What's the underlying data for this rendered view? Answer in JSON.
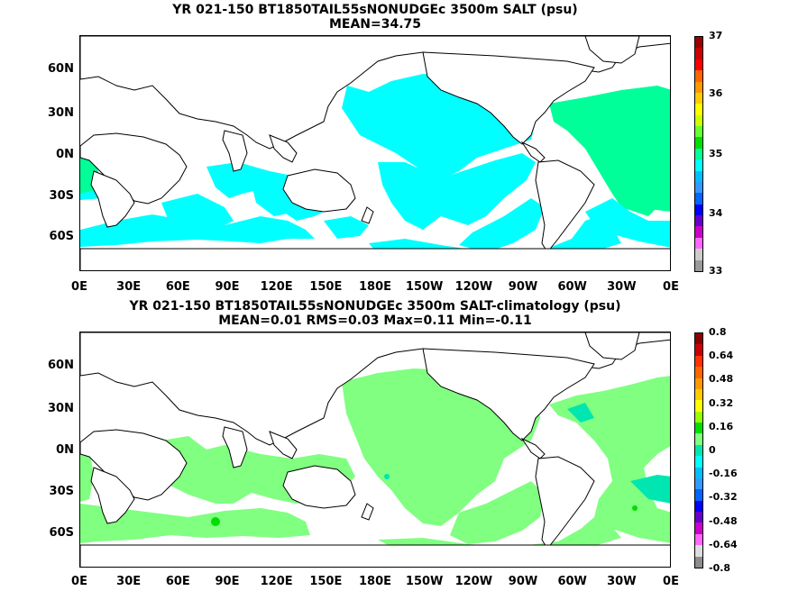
{
  "panel1": {
    "title_line1": "YR 021-150 BT1850TAIL55sNONUDGEc 3500m SALT (psu)",
    "title_line2": "MEAN=34.75",
    "colorbar_labels": [
      "37",
      "36",
      "35",
      "34",
      "33"
    ],
    "colorbar_colors": [
      "#9a9a9a",
      "#cccccc",
      "#ff66ff",
      "#cc00cc",
      "#6600cc",
      "#0000ff",
      "#0066ff",
      "#3399ff",
      "#00bfff",
      "#00ffff",
      "#00ff99",
      "#00e000",
      "#66ff33",
      "#ccff00",
      "#ffff00",
      "#ffcc00",
      "#ff9900",
      "#ff6600",
      "#ff0000",
      "#cc0000",
      "#990000"
    ]
  },
  "panel2": {
    "title_line1": "YR 021-150 BT1850TAIL55sNONUDGEc 3500m SALT-climatology (psu)",
    "title_line2": "MEAN=0.01   RMS=0.03   Max=0.11   Min=-0.11",
    "colorbar_labels": [
      "0.8",
      "0.64",
      "0.48",
      "0.32",
      "0.16",
      "0",
      "-0.16",
      "-0.32",
      "-0.48",
      "-0.64",
      "-0.8"
    ],
    "colorbar_colors": [
      "#8c8c8c",
      "#dddddd",
      "#ff66ff",
      "#cc00cc",
      "#6600cc",
      "#0000ff",
      "#0066ff",
      "#3399ff",
      "#00bfff",
      "#00ffff",
      "#00e6b0",
      "#80ff80",
      "#00dd00",
      "#99ff00",
      "#ffff00",
      "#ffcc00",
      "#ff9900",
      "#ff6600",
      "#ff3300",
      "#cc0000",
      "#880000"
    ]
  },
  "axes": {
    "y_ticks": [
      "60N",
      "30N",
      "0N",
      "30S",
      "60S"
    ],
    "x_ticks": [
      "0E",
      "30E",
      "60E",
      "90E",
      "120E",
      "150E",
      "180E",
      "150W",
      "120W",
      "90W",
      "60W",
      "30W",
      "0E"
    ]
  },
  "colors": {
    "salt_35": "#00ffff",
    "salt_35_2": "#00ff99",
    "anom_pos": "#80ff80",
    "anom_zero": "#00e6b0",
    "anom_high": "#00dd00"
  }
}
